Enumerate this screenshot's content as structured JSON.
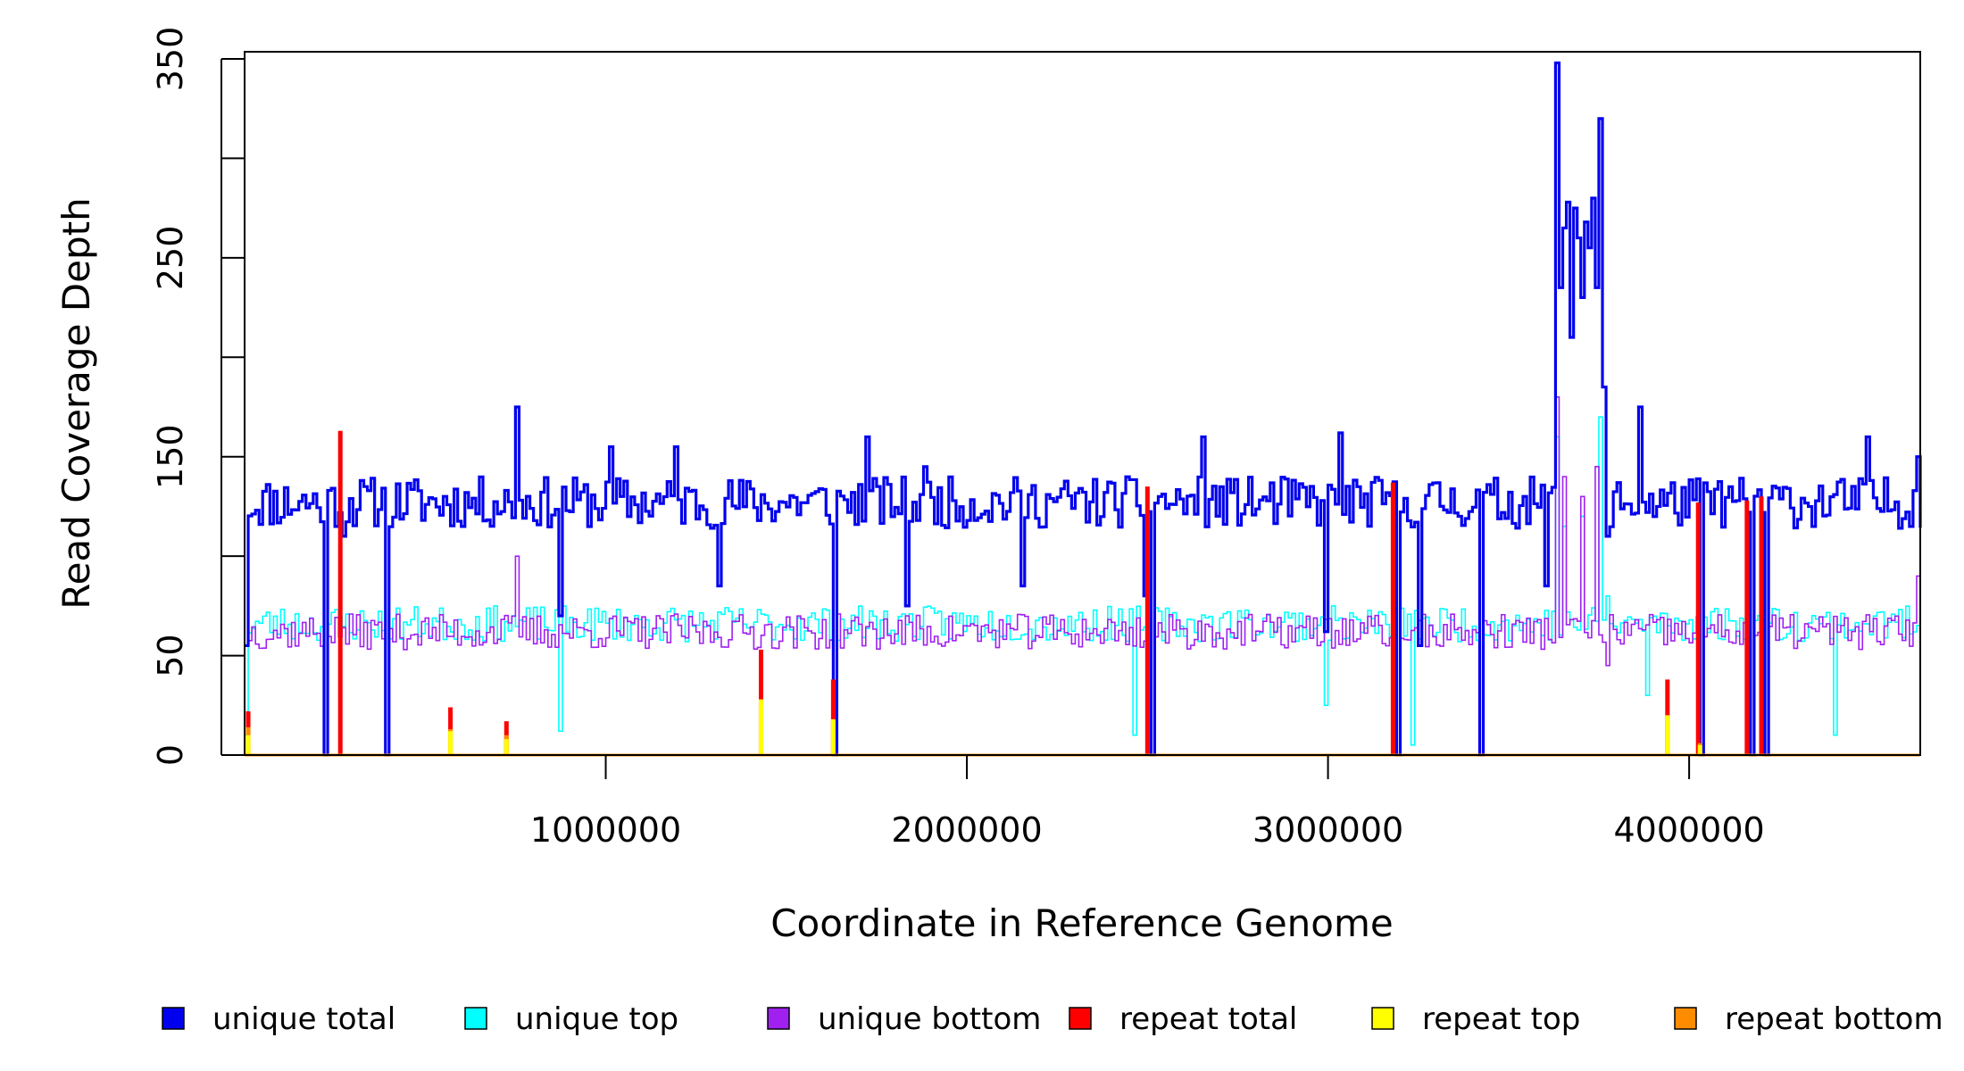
{
  "chart_data": {
    "type": "line",
    "title": "",
    "xlabel": "Coordinate in Reference Genome",
    "ylabel": "Read Coverage Depth",
    "xlim": [
      1,
      4640000
    ],
    "ylim": [
      0,
      350
    ],
    "x_ticks": [
      1000000,
      2000000,
      3000000,
      4000000
    ],
    "x_tick_labels": [
      "1000000",
      "2000000",
      "3000000",
      "4000000"
    ],
    "y_ticks": [
      0,
      50,
      100,
      150,
      200,
      250,
      300,
      350
    ],
    "y_tick_labels": [
      "0",
      "50",
      "",
      "150",
      "",
      "250",
      "",
      "350"
    ],
    "grid": false,
    "legend_position": "bottom",
    "x_step": 10000,
    "series": [
      {
        "name": "unique total",
        "color": "#0000ee",
        "style": "bold-step",
        "baseline": 127,
        "jitter": 13,
        "seed": 11,
        "events": [
          {
            "at": 0,
            "value": 55
          },
          {
            "at": 220000,
            "value": 0
          },
          {
            "at": 270000,
            "value": 110
          },
          {
            "at": 390000,
            "value": 0
          },
          {
            "at": 750000,
            "value": 175
          },
          {
            "at": 870000,
            "value": 70
          },
          {
            "at": 1010000,
            "value": 155
          },
          {
            "at": 1190000,
            "value": 155
          },
          {
            "at": 1310000,
            "value": 85
          },
          {
            "at": 1630000,
            "value": 0
          },
          {
            "at": 1720000,
            "value": 160
          },
          {
            "at": 1830000,
            "value": 75
          },
          {
            "at": 1880000,
            "value": 145
          },
          {
            "at": 2150000,
            "value": 85
          },
          {
            "at": 2490000,
            "value": 80
          },
          {
            "at": 2510000,
            "value": 0
          },
          {
            "at": 2530000,
            "value": 130
          },
          {
            "at": 2650000,
            "value": 160
          },
          {
            "at": 2990000,
            "value": 62
          },
          {
            "at": 3030000,
            "value": 162
          },
          {
            "at": 3190000,
            "value": 0
          },
          {
            "at": 3250000,
            "value": 55
          },
          {
            "at": 3420000,
            "value": 0
          },
          {
            "at": 3600000,
            "value": 85
          },
          {
            "at": 3630000,
            "value": 348
          },
          {
            "at": 3640000,
            "value": 235
          },
          {
            "at": 3650000,
            "value": 265
          },
          {
            "at": 3660000,
            "value": 278
          },
          {
            "at": 3670000,
            "value": 210
          },
          {
            "at": 3680000,
            "value": 275
          },
          {
            "at": 3690000,
            "value": 260
          },
          {
            "at": 3700000,
            "value": 230
          },
          {
            "at": 3710000,
            "value": 268
          },
          {
            "at": 3720000,
            "value": 255
          },
          {
            "at": 3730000,
            "value": 280
          },
          {
            "at": 3740000,
            "value": 235
          },
          {
            "at": 3750000,
            "value": 320
          },
          {
            "at": 3760000,
            "value": 185
          },
          {
            "at": 3770000,
            "value": 110
          },
          {
            "at": 3860000,
            "value": 175
          },
          {
            "at": 4030000,
            "value": 0
          },
          {
            "at": 4170000,
            "value": 0
          },
          {
            "at": 4210000,
            "value": 0
          },
          {
            "at": 4490000,
            "value": 160
          },
          {
            "at": 4630000,
            "value": 150
          }
        ]
      },
      {
        "name": "unique top",
        "color": "#00ffff",
        "style": "step",
        "baseline": 66,
        "jitter": 9,
        "seed": 23,
        "events": [
          {
            "at": 0,
            "value": 10
          },
          {
            "at": 220000,
            "value": 0
          },
          {
            "at": 390000,
            "value": 0
          },
          {
            "at": 870000,
            "value": 12
          },
          {
            "at": 1630000,
            "value": 0
          },
          {
            "at": 2460000,
            "value": 10
          },
          {
            "at": 2510000,
            "value": 0
          },
          {
            "at": 2990000,
            "value": 25
          },
          {
            "at": 3190000,
            "value": 0
          },
          {
            "at": 3230000,
            "value": 5
          },
          {
            "at": 3420000,
            "value": 0
          },
          {
            "at": 3630000,
            "value": 160
          },
          {
            "at": 3650000,
            "value": 115
          },
          {
            "at": 3700000,
            "value": 120
          },
          {
            "at": 3750000,
            "value": 170
          },
          {
            "at": 3770000,
            "value": 80
          },
          {
            "at": 3880000,
            "value": 30
          },
          {
            "at": 4030000,
            "value": 0
          },
          {
            "at": 4170000,
            "value": 0
          },
          {
            "at": 4210000,
            "value": 0
          },
          {
            "at": 4400000,
            "value": 10
          }
        ]
      },
      {
        "name": "unique bottom",
        "color": "#a020f0",
        "style": "step",
        "baseline": 62,
        "jitter": 9,
        "seed": 37,
        "events": [
          {
            "at": 0,
            "value": 55
          },
          {
            "at": 220000,
            "value": 0
          },
          {
            "at": 390000,
            "value": 0
          },
          {
            "at": 750000,
            "value": 100
          },
          {
            "at": 1630000,
            "value": 0
          },
          {
            "at": 2510000,
            "value": 0
          },
          {
            "at": 3190000,
            "value": 0
          },
          {
            "at": 3420000,
            "value": 0
          },
          {
            "at": 3630000,
            "value": 180
          },
          {
            "at": 3650000,
            "value": 140
          },
          {
            "at": 3700000,
            "value": 130
          },
          {
            "at": 3740000,
            "value": 145
          },
          {
            "at": 3770000,
            "value": 45
          },
          {
            "at": 4030000,
            "value": 0
          },
          {
            "at": 4170000,
            "value": 0
          },
          {
            "at": 4210000,
            "value": 0
          },
          {
            "at": 4630000,
            "value": 90
          }
        ]
      },
      {
        "name": "repeat total",
        "color": "#ff0000",
        "style": "spikes",
        "points": [
          {
            "x": 10000,
            "y": 22
          },
          {
            "x": 265000,
            "y": 163
          },
          {
            "x": 570000,
            "y": 24
          },
          {
            "x": 725000,
            "y": 17
          },
          {
            "x": 1430000,
            "y": 53
          },
          {
            "x": 1630000,
            "y": 38
          },
          {
            "x": 2500000,
            "y": 135
          },
          {
            "x": 3180000,
            "y": 137
          },
          {
            "x": 3940000,
            "y": 38
          },
          {
            "x": 4025000,
            "y": 127
          },
          {
            "x": 4160000,
            "y": 128
          },
          {
            "x": 4200000,
            "y": 130
          }
        ]
      },
      {
        "name": "repeat top",
        "color": "#ffff00",
        "style": "spikes",
        "points": [
          {
            "x": 10000,
            "y": 10
          },
          {
            "x": 570000,
            "y": 12
          },
          {
            "x": 725000,
            "y": 8
          },
          {
            "x": 1430000,
            "y": 28
          },
          {
            "x": 1630000,
            "y": 18
          },
          {
            "x": 3940000,
            "y": 20
          },
          {
            "x": 4030000,
            "y": 5
          }
        ]
      },
      {
        "name": "repeat bottom",
        "color": "#ff8c00",
        "style": "spikes",
        "points": [
          {
            "x": 10000,
            "y": 14
          },
          {
            "x": 570000,
            "y": 13
          },
          {
            "x": 725000,
            "y": 10
          },
          {
            "x": 1430000,
            "y": 27
          },
          {
            "x": 1630000,
            "y": 17
          },
          {
            "x": 3940000,
            "y": 19
          },
          {
            "x": 4030000,
            "y": 6
          }
        ]
      }
    ],
    "legend": [
      {
        "name": "unique total",
        "color": "#0000ee"
      },
      {
        "name": "unique top",
        "color": "#00ffff"
      },
      {
        "name": "unique bottom",
        "color": "#a020f0"
      },
      {
        "name": "repeat total",
        "color": "#ff0000"
      },
      {
        "name": "repeat top",
        "color": "#ffff00"
      },
      {
        "name": "repeat bottom",
        "color": "#ff8c00"
      }
    ]
  }
}
